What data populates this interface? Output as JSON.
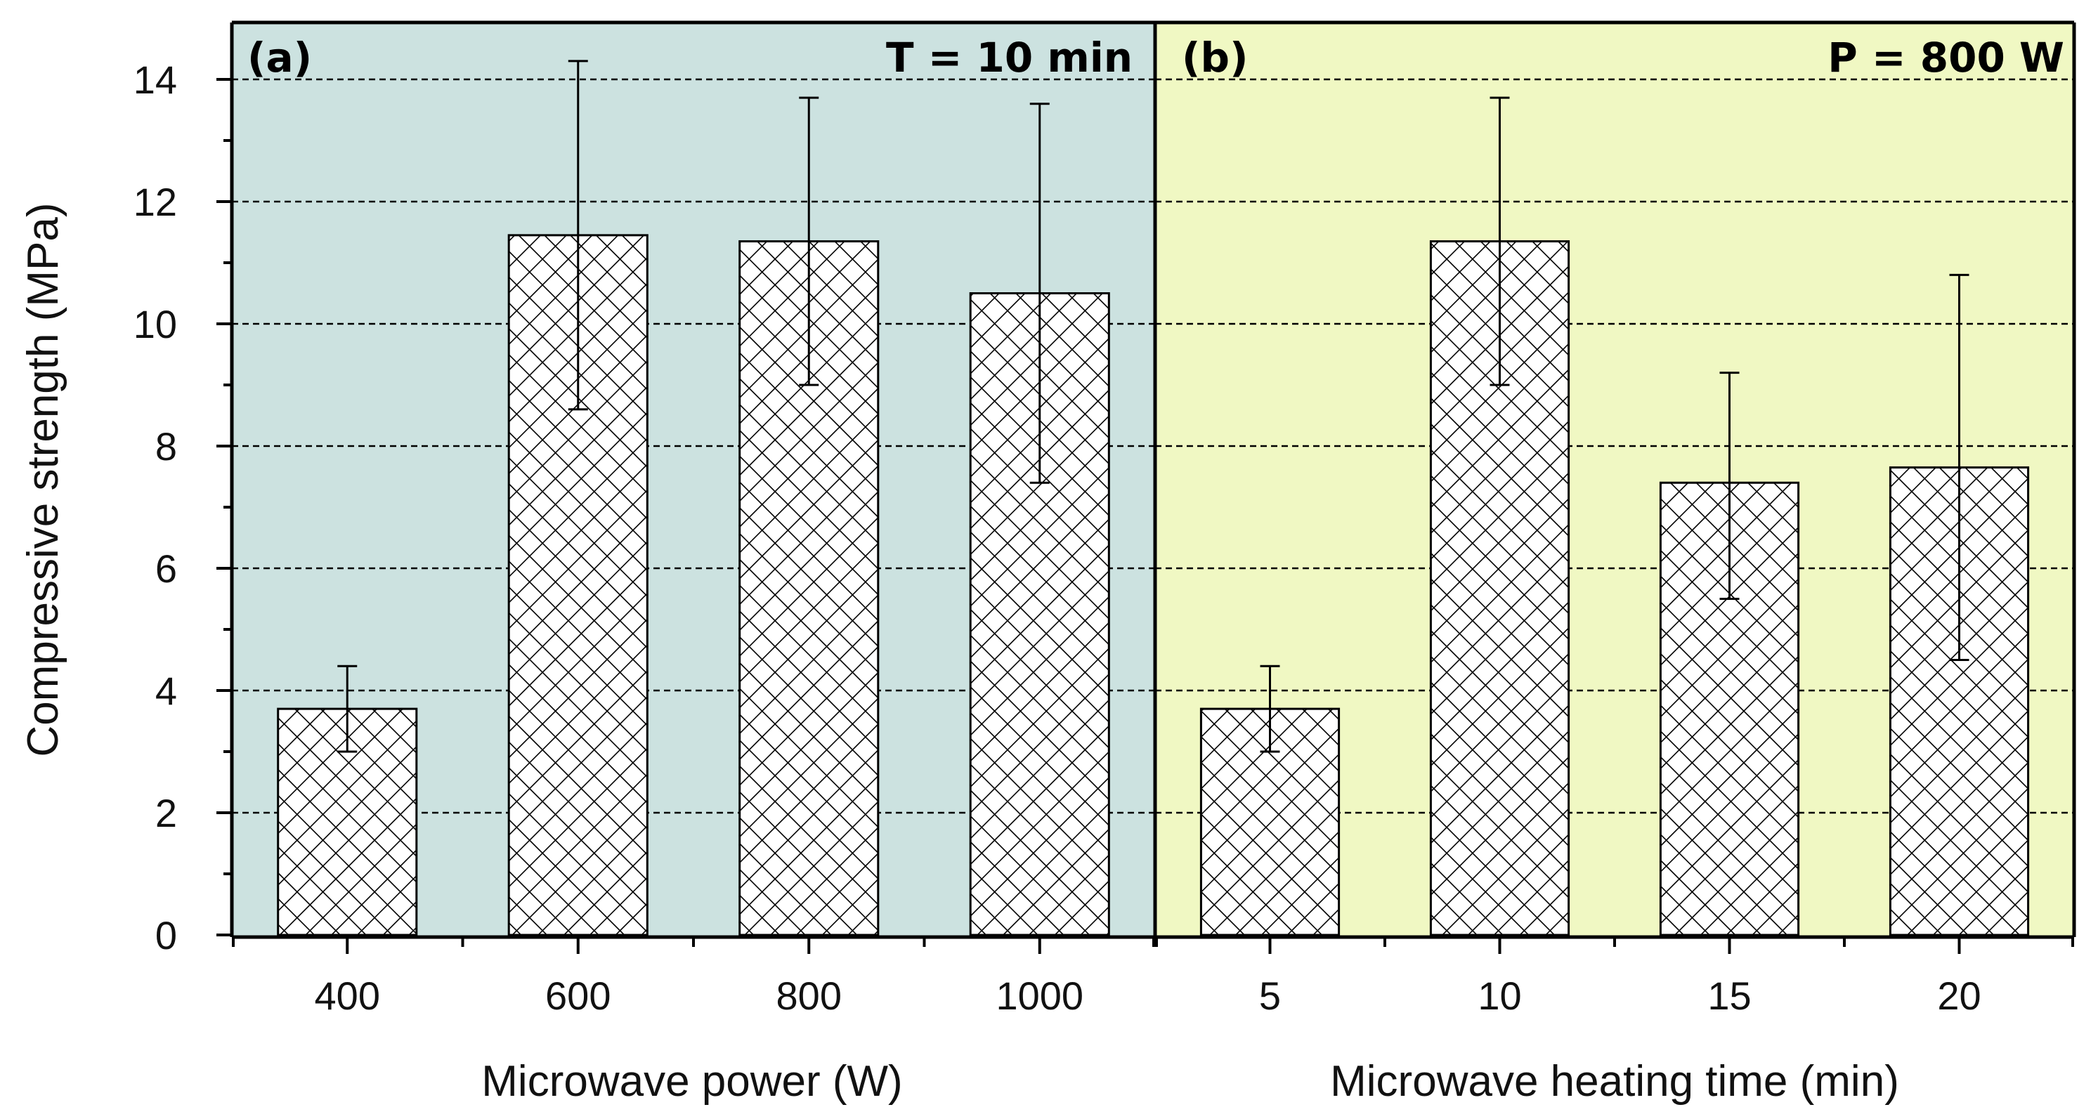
{
  "colors": {
    "panel_a_bg": "#cce2e0",
    "panel_b_bg": "#f0f8c3",
    "bar_fill": "#ffffff",
    "hatch": "#000000"
  },
  "chart_data": [
    {
      "type": "bar",
      "panel_label": "(a)",
      "annotation": "T = 10 min",
      "xlabel": "Microwave power (W)",
      "ylabel": "Compressive strength (MPa)",
      "categories": [
        "400",
        "600",
        "800",
        "1000"
      ],
      "values": [
        3.7,
        11.45,
        11.35,
        10.5
      ],
      "error_lower": [
        3.0,
        8.6,
        9.0,
        7.4
      ],
      "error_upper": [
        4.4,
        14.3,
        13.7,
        13.6
      ],
      "ylim": [
        0,
        15
      ],
      "yticks": [
        "0",
        "2",
        "4",
        "6",
        "8",
        "10",
        "12",
        "14"
      ],
      "grid": "horizontal dashed"
    },
    {
      "type": "bar",
      "panel_label": "(b)",
      "annotation": "P = 800 W",
      "xlabel": "Microwave heating time (min)",
      "ylabel": "Compressive strength (MPa)",
      "categories": [
        "5",
        "10",
        "15",
        "20"
      ],
      "values": [
        3.7,
        11.35,
        7.4,
        7.65
      ],
      "error_lower": [
        3.0,
        9.0,
        5.5,
        4.5
      ],
      "error_upper": [
        4.4,
        13.7,
        9.2,
        10.8
      ],
      "ylim": [
        0,
        15
      ],
      "yticks": [
        "0",
        "2",
        "4",
        "6",
        "8",
        "10",
        "12",
        "14"
      ],
      "grid": "horizontal dashed"
    }
  ]
}
